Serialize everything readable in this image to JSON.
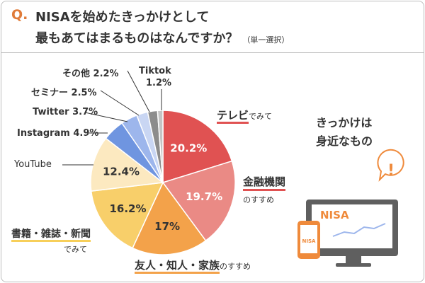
{
  "header": {
    "q_mark": "Q.",
    "title_line1": "NISAを始めたきっかけとして",
    "title_line2": "最もあてはまるものはなんですか？",
    "note": "（単一選択）"
  },
  "chart_data": {
    "type": "pie",
    "start_angle_deg": 0,
    "direction": "clockwise",
    "slices": [
      {
        "name": "テレビでみて",
        "value": 20.2,
        "label": "20.2%",
        "color": "#e05252"
      },
      {
        "name": "金融機関のすすめ",
        "value": 19.7,
        "label": "19.7%",
        "color": "#ea8a85"
      },
      {
        "name": "友人・知人・家族のすすめ",
        "value": 17.0,
        "label": "17%",
        "color": "#f3a24a"
      },
      {
        "name": "書籍・雑誌・新聞でみて",
        "value": 16.2,
        "label": "16.2%",
        "color": "#f8cf6a"
      },
      {
        "name": "YouTube",
        "value": 12.4,
        "label": "12.4%",
        "color": "#fce9c0"
      },
      {
        "name": "Instagram",
        "value": 4.9,
        "label": "4.9%",
        "color": "#6f95e0"
      },
      {
        "name": "Twitter",
        "value": 3.7,
        "label": "3.7%",
        "color": "#9db6ec"
      },
      {
        "name": "セミナー",
        "value": 2.5,
        "label": "2.5%",
        "color": "#c9d6f3"
      },
      {
        "name": "その他",
        "value": 2.2,
        "label": "2.2%",
        "color": "#8c8c8c"
      },
      {
        "name": "Tiktok",
        "value": 1.2,
        "label": "1.2%",
        "color": "#c4c4c4"
      }
    ]
  },
  "labels": {
    "tv_main": "テレビ",
    "tv_sub": "でみて",
    "bank_main": "金融機関",
    "bank_sub": "のすすめ",
    "friends_main": "友人・知人・家族",
    "friends_sub": "のすすめ",
    "books_main": "書籍・雑誌・新聞",
    "books_sub": "でみて",
    "youtube": "YouTube",
    "instagram": "Instagram 4.9%",
    "twitter": "Twitter 3.7%",
    "seminar": "セミナー 2.5%",
    "other": "その他 2.2%",
    "tiktok_name": "Tiktok",
    "tiktok_value": "1.2%"
  },
  "tagline": {
    "line1": "きっかけは",
    "line2": "身近なもの"
  },
  "illustration": {
    "monitor_text": "NISA",
    "phone_text": "NISA",
    "bubble_text": "!",
    "icon": "monitor-with-chart-and-phone-icon"
  }
}
